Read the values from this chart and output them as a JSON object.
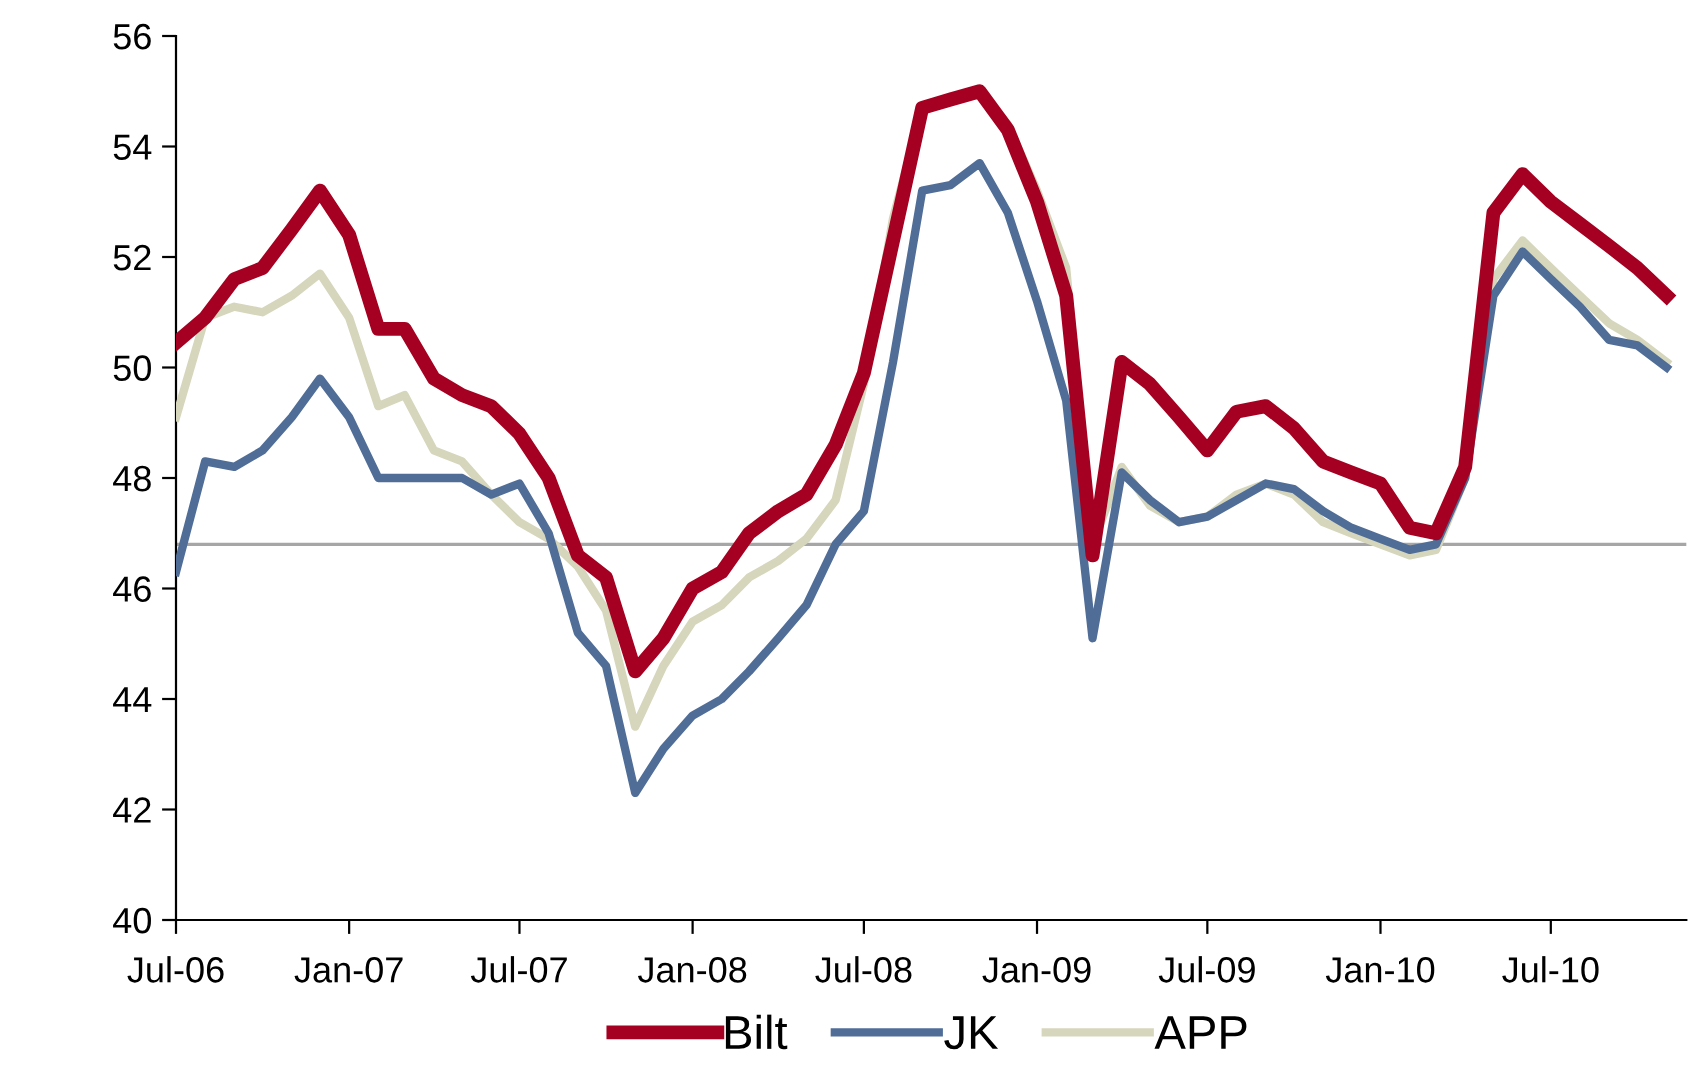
{
  "chart_data": {
    "type": "line",
    "x": [
      "2006-07",
      "2006-08",
      "2006-09",
      "2006-10",
      "2006-11",
      "2006-12",
      "2007-01",
      "2007-02",
      "2007-03",
      "2007-04",
      "2007-05",
      "2007-06",
      "2007-07",
      "2007-08",
      "2007-09",
      "2007-10",
      "2007-11",
      "2007-12",
      "2008-01",
      "2008-02",
      "2008-03",
      "2008-04",
      "2008-05",
      "2008-06",
      "2008-07",
      "2008-08",
      "2008-09",
      "2008-10",
      "2008-11",
      "2008-12",
      "2009-01",
      "2009-02",
      "2009-03",
      "2009-04",
      "2009-05",
      "2009-06",
      "2009-07",
      "2009-08",
      "2009-09",
      "2009-10",
      "2009-11",
      "2009-12",
      "2010-01",
      "2010-02",
      "2010-03",
      "2010-04",
      "2010-05",
      "2010-06",
      "2010-07",
      "2010-08",
      "2010-09",
      "2010-10",
      "2010-11"
    ],
    "series": [
      {
        "name": "Bilt",
        "color": "#a50021",
        "values": [
          50.45,
          50.9,
          51.6,
          51.8,
          52.5,
          53.2,
          52.4,
          50.7,
          50.7,
          49.8,
          49.5,
          49.3,
          48.8,
          48.0,
          46.6,
          46.2,
          44.5,
          45.1,
          46.0,
          46.3,
          47.0,
          47.4,
          47.7,
          48.6,
          49.9,
          52.3,
          54.7,
          54.85,
          55.0,
          54.3,
          53.0,
          51.3,
          46.6,
          50.1,
          49.7,
          49.1,
          48.5,
          49.2,
          49.3,
          48.9,
          48.3,
          48.1,
          47.9,
          47.1,
          47.0,
          48.2,
          52.8,
          53.5,
          53.0,
          52.6,
          52.2,
          51.8,
          51.3
        ]
      },
      {
        "name": "JK",
        "color": "#4f6d97",
        "values": [
          46.3,
          48.3,
          48.2,
          48.5,
          49.1,
          49.8,
          49.1,
          48.0,
          48.0,
          48.0,
          48.0,
          47.7,
          47.9,
          47.0,
          45.2,
          44.6,
          42.3,
          43.1,
          43.7,
          44.0,
          44.5,
          45.1,
          45.7,
          46.8,
          47.4,
          50.1,
          53.2,
          53.3,
          53.7,
          52.8,
          51.2,
          49.4,
          45.1,
          48.1,
          47.6,
          47.2,
          47.3,
          47.6,
          47.9,
          47.8,
          47.4,
          47.1,
          46.9,
          46.7,
          46.8,
          48.0,
          51.3,
          52.1,
          51.6,
          51.1,
          50.5,
          50.4,
          50.0
        ]
      },
      {
        "name": "APP",
        "color": "#d6d6bc",
        "values": [
          49.1,
          50.9,
          51.1,
          51.0,
          51.3,
          51.7,
          50.9,
          49.3,
          49.5,
          48.5,
          48.3,
          47.7,
          47.2,
          46.9,
          46.4,
          45.6,
          43.5,
          44.6,
          45.4,
          45.7,
          46.2,
          46.5,
          46.9,
          47.6,
          49.7,
          52.7,
          54.7,
          54.9,
          55.0,
          54.4,
          53.2,
          51.8,
          46.8,
          48.2,
          47.5,
          47.2,
          47.3,
          47.7,
          47.9,
          47.7,
          47.2,
          47.0,
          46.8,
          46.6,
          46.7,
          48.0,
          51.6,
          52.3,
          51.8,
          51.3,
          50.8,
          50.5,
          50.1
        ]
      }
    ],
    "xlim": [
      "2006-07-01",
      "2010-11-22"
    ],
    "xticks": [
      {
        "value": "2006-07",
        "label": "Jul-06"
      },
      {
        "value": "2007-01",
        "label": "Jan-07"
      },
      {
        "value": "2007-07",
        "label": "Jul-07"
      },
      {
        "value": "2008-01",
        "label": "Jan-08"
      },
      {
        "value": "2008-07",
        "label": "Jul-08"
      },
      {
        "value": "2009-01",
        "label": "Jan-09"
      },
      {
        "value": "2009-07",
        "label": "Jul-09"
      },
      {
        "value": "2010-01",
        "label": "Jan-10"
      },
      {
        "value": "2010-07",
        "label": "Jul-10"
      }
    ],
    "ylim": [
      40,
      56
    ],
    "yticks": [
      40,
      42,
      44,
      46,
      48,
      50,
      52,
      54,
      56
    ],
    "ref_lines": [
      {
        "axis": "y",
        "value": 46.8,
        "color": "#a6a6a6"
      }
    ],
    "grid": false,
    "legend": "bottom",
    "marker": "none",
    "line_style": "solid"
  }
}
